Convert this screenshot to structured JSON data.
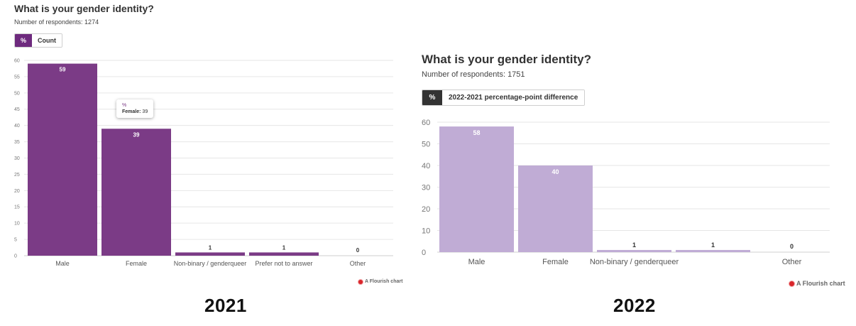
{
  "colors": {
    "bar_2021": "#7b3b86",
    "bar_2022": "#c0acd5",
    "toggle_2021_active": "#6e2a7e",
    "toggle_2022_active": "#333333",
    "grid": "#e6e6e6",
    "credit_dot": "#d9262b"
  },
  "panels": [
    {
      "id": "2021",
      "title": "What is your gender identity?",
      "subtitle": "Number of respondents: 1274",
      "toggle": [
        {
          "label": "%",
          "active": true
        },
        {
          "label": "Count",
          "active": false
        }
      ],
      "tooltip": {
        "head": "%",
        "label": "Female:",
        "value": "39"
      },
      "credit": "A Flourish chart",
      "year_label": "2021"
    },
    {
      "id": "2022",
      "title": "What is your gender identity?",
      "subtitle": "Number of respondents: 1751",
      "toggle": [
        {
          "label": "%",
          "active": true
        },
        {
          "label": "2022-2021 percentage-point difference",
          "active": false
        }
      ],
      "credit": "A Flourish chart",
      "year_label": "2022"
    }
  ],
  "chart_data": [
    {
      "type": "bar",
      "title": "What is your gender identity?",
      "categories": [
        "Male",
        "Female",
        "Non-binary / genderqueer",
        "Prefer not to answer",
        "Other"
      ],
      "values": [
        59,
        39,
        1,
        1,
        0
      ],
      "ylim": [
        0,
        60
      ],
      "yticks": [
        0,
        5,
        10,
        15,
        20,
        25,
        30,
        35,
        40,
        45,
        50,
        55,
        60
      ],
      "grid": true
    },
    {
      "type": "bar",
      "title": "What is your gender identity?",
      "categories": [
        "Male",
        "Female",
        "Non-binary / genderqueer",
        "",
        "Other"
      ],
      "values": [
        58,
        40,
        1,
        1,
        0
      ],
      "ylim": [
        0,
        60
      ],
      "yticks": [
        0,
        10,
        20,
        30,
        40,
        50,
        60
      ],
      "grid": true
    }
  ]
}
